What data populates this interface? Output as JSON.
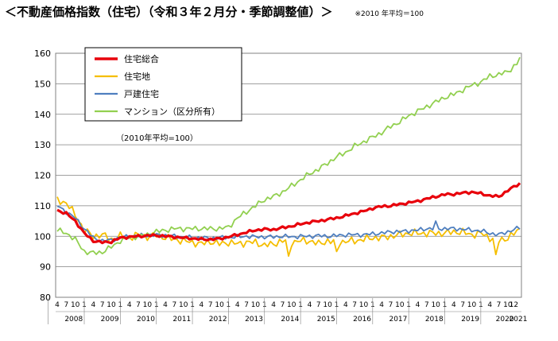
{
  "header": {
    "title": "＜不動産価格指数（住宅）（令和３年２月分・季節調整値）＞",
    "note": "※2010 年平均＝100"
  },
  "chart_data": {
    "type": "line",
    "title": "＜不動産価格指数（住宅）（令和３年２月分・季節調整値）＞",
    "subtitle": "※2010 年平均＝100",
    "xlabel": "",
    "ylabel": "",
    "ylim": [
      80,
      160
    ],
    "yticks": [
      80,
      90,
      100,
      110,
      120,
      130,
      140,
      150,
      160
    ],
    "grid": true,
    "legend_position": "top-left",
    "legend_note": "（2010年平均=100）",
    "month_tick_labels": [
      "4",
      "7",
      "10",
      "1"
    ],
    "final_month_label": "12",
    "years": [
      "2008",
      "2009",
      "2010",
      "2011",
      "2012",
      "2013",
      "2014",
      "2015",
      "2016",
      "2017",
      "2018",
      "2019",
      "2020",
      "2021"
    ],
    "x_start": "2008-04",
    "x_end": "2021-02",
    "series": [
      {
        "name": "住宅総合",
        "color": "#e8000b",
        "anchors": [
          [
            "2008-04",
            108.5
          ],
          [
            "2008-07",
            107.5
          ],
          [
            "2008-10",
            105
          ],
          [
            "2009-01",
            101
          ],
          [
            "2009-04",
            98.5
          ],
          [
            "2009-07",
            98
          ],
          [
            "2009-10",
            98.2
          ],
          [
            "2010-01",
            99.5
          ],
          [
            "2010-04",
            99.8
          ],
          [
            "2010-07",
            100
          ],
          [
            "2010-10",
            100.2
          ],
          [
            "2011-01",
            100.3
          ],
          [
            "2011-04",
            100
          ],
          [
            "2011-07",
            99.8
          ],
          [
            "2011-10",
            99.5
          ],
          [
            "2012-01",
            99.3
          ],
          [
            "2012-04",
            99
          ],
          [
            "2012-07",
            99
          ],
          [
            "2012-10",
            99.2
          ],
          [
            "2013-01",
            99.8
          ],
          [
            "2013-04",
            100.5
          ],
          [
            "2013-07",
            101.3
          ],
          [
            "2013-10",
            102
          ],
          [
            "2014-01",
            102.3
          ],
          [
            "2014-04",
            102.2
          ],
          [
            "2014-07",
            102.8
          ],
          [
            "2014-10",
            103.3
          ],
          [
            "2015-01",
            104
          ],
          [
            "2015-04",
            104.6
          ],
          [
            "2015-07",
            105
          ],
          [
            "2015-10",
            105.5
          ],
          [
            "2016-01",
            106
          ],
          [
            "2016-04",
            106.7
          ],
          [
            "2016-07",
            107.5
          ],
          [
            "2016-10",
            108.2
          ],
          [
            "2017-01",
            109.2
          ],
          [
            "2017-04",
            109.8
          ],
          [
            "2017-07",
            110
          ],
          [
            "2017-10",
            110.5
          ],
          [
            "2018-01",
            111
          ],
          [
            "2018-04",
            111.5
          ],
          [
            "2018-07",
            112.3
          ],
          [
            "2018-10",
            113
          ],
          [
            "2019-01",
            113.7
          ],
          [
            "2019-04",
            113.8
          ],
          [
            "2019-07",
            114.2
          ],
          [
            "2019-10",
            114.5
          ],
          [
            "2020-01",
            114
          ],
          [
            "2020-04",
            113.3
          ],
          [
            "2020-07",
            113
          ],
          [
            "2020-10",
            115
          ],
          [
            "2021-01",
            116.8
          ],
          [
            "2021-02",
            117.3
          ]
        ],
        "jitter": 0.5
      },
      {
        "name": "住宅地",
        "color": "#f5be00",
        "anchors": [
          [
            "2008-04",
            111.8
          ],
          [
            "2008-07",
            111
          ],
          [
            "2008-10",
            107
          ],
          [
            "2009-01",
            102
          ],
          [
            "2009-04",
            100
          ],
          [
            "2009-07",
            100.5
          ],
          [
            "2009-10",
            99
          ],
          [
            "2010-01",
            100
          ],
          [
            "2010-04",
            99.5
          ],
          [
            "2010-07",
            100.5
          ],
          [
            "2010-10",
            99.8
          ],
          [
            "2011-01",
            100.5
          ],
          [
            "2011-04",
            99.5
          ],
          [
            "2011-07",
            99
          ],
          [
            "2011-10",
            98.5
          ],
          [
            "2012-01",
            98
          ],
          [
            "2012-04",
            97.5
          ],
          [
            "2012-07",
            98.3
          ],
          [
            "2012-10",
            97.5
          ],
          [
            "2013-01",
            98
          ],
          [
            "2013-04",
            97.5
          ],
          [
            "2013-07",
            98
          ],
          [
            "2013-10",
            98
          ],
          [
            "2014-01",
            97
          ],
          [
            "2014-04",
            97.5
          ],
          [
            "2014-07",
            98.5
          ],
          [
            "2014-10",
            98
          ],
          [
            "2015-01",
            98.5
          ],
          [
            "2015-04",
            98.5
          ],
          [
            "2015-07",
            97.5
          ],
          [
            "2015-10",
            98.5
          ],
          [
            "2016-01",
            98
          ],
          [
            "2016-04",
            98.3
          ],
          [
            "2016-07",
            98.5
          ],
          [
            "2016-10",
            99
          ],
          [
            "2017-01",
            99.5
          ],
          [
            "2017-04",
            99.5
          ],
          [
            "2017-07",
            100
          ],
          [
            "2017-10",
            100.5
          ],
          [
            "2018-01",
            101
          ],
          [
            "2018-04",
            101
          ],
          [
            "2018-07",
            101
          ],
          [
            "2018-10",
            101
          ],
          [
            "2019-01",
            101
          ],
          [
            "2019-04",
            101.5
          ],
          [
            "2019-07",
            101.3
          ],
          [
            "2019-10",
            100.5
          ],
          [
            "2020-01",
            101
          ],
          [
            "2020-04",
            99.5
          ],
          [
            "2020-07",
            98.5
          ],
          [
            "2020-10",
            99.5
          ],
          [
            "2021-01",
            101.5
          ],
          [
            "2021-02",
            102.5
          ]
        ],
        "jitter": 1.4,
        "spikes": [
          [
            "2014-09",
            93.5
          ],
          [
            "2016-01",
            95
          ],
          [
            "2020-06",
            94
          ]
        ]
      },
      {
        "name": "戸建住宅",
        "color": "#4f7fbf",
        "anchors": [
          [
            "2008-04",
            110
          ],
          [
            "2008-07",
            108
          ],
          [
            "2008-10",
            106
          ],
          [
            "2009-01",
            102.5
          ],
          [
            "2009-04",
            99.5
          ],
          [
            "2009-07",
            98.5
          ],
          [
            "2009-10",
            98.8
          ],
          [
            "2010-01",
            99.5
          ],
          [
            "2010-04",
            100
          ],
          [
            "2010-07",
            100.2
          ],
          [
            "2010-10",
            100.3
          ],
          [
            "2011-01",
            100.4
          ],
          [
            "2011-04",
            100.3
          ],
          [
            "2011-07",
            100
          ],
          [
            "2011-10",
            99.8
          ],
          [
            "2012-01",
            99.5
          ],
          [
            "2012-04",
            99.5
          ],
          [
            "2012-07",
            99.3
          ],
          [
            "2012-10",
            99.5
          ],
          [
            "2013-01",
            99.7
          ],
          [
            "2013-04",
            99.8
          ],
          [
            "2013-07",
            100
          ],
          [
            "2013-10",
            99.8
          ],
          [
            "2014-01",
            99.8
          ],
          [
            "2014-04",
            99.8
          ],
          [
            "2014-07",
            100
          ],
          [
            "2014-10",
            99.8
          ],
          [
            "2015-01",
            100
          ],
          [
            "2015-04",
            100
          ],
          [
            "2015-07",
            100.2
          ],
          [
            "2015-10",
            100
          ],
          [
            "2016-01",
            100.2
          ],
          [
            "2016-04",
            100.5
          ],
          [
            "2016-07",
            100.5
          ],
          [
            "2016-10",
            100.5
          ],
          [
            "2017-01",
            100.8
          ],
          [
            "2017-04",
            101
          ],
          [
            "2017-07",
            101.5
          ],
          [
            "2017-10",
            101.5
          ],
          [
            "2018-01",
            101.8
          ],
          [
            "2018-04",
            102
          ],
          [
            "2018-07",
            102.5
          ],
          [
            "2018-10",
            102.5
          ],
          [
            "2019-01",
            102.5
          ],
          [
            "2019-04",
            102.5
          ],
          [
            "2019-07",
            102.3
          ],
          [
            "2019-10",
            102
          ],
          [
            "2020-01",
            101.8
          ],
          [
            "2020-04",
            101
          ],
          [
            "2020-07",
            100.5
          ],
          [
            "2020-10",
            101.5
          ],
          [
            "2021-01",
            102.5
          ],
          [
            "2021-02",
            102.8
          ]
        ],
        "jitter": 0.8,
        "spikes": [
          [
            "2018-10",
            105
          ]
        ]
      },
      {
        "name": "マンション（区分所有）",
        "color": "#92d050",
        "anchors": [
          [
            "2008-04",
            102
          ],
          [
            "2008-07",
            101
          ],
          [
            "2008-10",
            99
          ],
          [
            "2009-01",
            95
          ],
          [
            "2009-04",
            94.5
          ],
          [
            "2009-07",
            94.8
          ],
          [
            "2009-10",
            96.5
          ],
          [
            "2010-01",
            98.5
          ],
          [
            "2010-04",
            99.5
          ],
          [
            "2010-07",
            100
          ],
          [
            "2010-10",
            100.5
          ],
          [
            "2011-01",
            101.5
          ],
          [
            "2011-04",
            102
          ],
          [
            "2011-07",
            102.5
          ],
          [
            "2011-10",
            102.5
          ],
          [
            "2012-01",
            102.5
          ],
          [
            "2012-04",
            102.5
          ],
          [
            "2012-07",
            102.5
          ],
          [
            "2012-10",
            102.5
          ],
          [
            "2013-01",
            103
          ],
          [
            "2013-04",
            106
          ],
          [
            "2013-07",
            108
          ],
          [
            "2013-10",
            110
          ],
          [
            "2014-01",
            112
          ],
          [
            "2014-04",
            113
          ],
          [
            "2014-07",
            114.5
          ],
          [
            "2014-10",
            116.5
          ],
          [
            "2015-01",
            118.5
          ],
          [
            "2015-04",
            120.5
          ],
          [
            "2015-07",
            122
          ],
          [
            "2015-10",
            124
          ],
          [
            "2016-01",
            126
          ],
          [
            "2016-04",
            127.5
          ],
          [
            "2016-07",
            129.5
          ],
          [
            "2016-10",
            131
          ],
          [
            "2017-01",
            132.5
          ],
          [
            "2017-04",
            134
          ],
          [
            "2017-07",
            136
          ],
          [
            "2017-10",
            137.5
          ],
          [
            "2018-01",
            139.5
          ],
          [
            "2018-04",
            141
          ],
          [
            "2018-07",
            142.5
          ],
          [
            "2018-10",
            144
          ],
          [
            "2019-01",
            145.5
          ],
          [
            "2019-04",
            146.5
          ],
          [
            "2019-07",
            148
          ],
          [
            "2019-10",
            149.5
          ],
          [
            "2020-01",
            150.5
          ],
          [
            "2020-04",
            152.5
          ],
          [
            "2020-07",
            153
          ],
          [
            "2020-10",
            154
          ],
          [
            "2021-01",
            156.5
          ],
          [
            "2021-02",
            158.5
          ]
        ],
        "jitter": 1.0
      }
    ]
  }
}
